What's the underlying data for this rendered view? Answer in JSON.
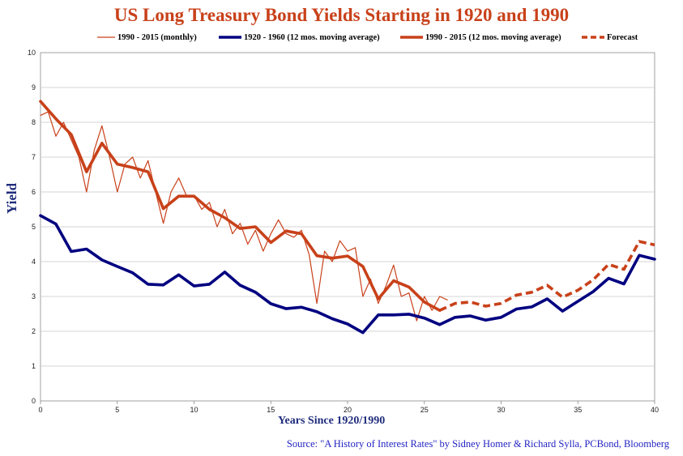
{
  "chart_data": {
    "type": "line",
    "title": "US Long Treasury Bond Yields Starting in 1920 and 1990",
    "xlabel": "Years Since 1920/1990",
    "ylabel": "Yield",
    "xlim": [
      0,
      40
    ],
    "ylim": [
      0,
      10
    ],
    "xticks": [
      "0",
      "5",
      "10",
      "15",
      "20",
      "25",
      "30",
      "35",
      "40"
    ],
    "yticks": [
      "0",
      "1",
      "2",
      "3",
      "4",
      "5",
      "6",
      "7",
      "8",
      "9",
      "10"
    ],
    "grid": true,
    "legend_position": "top",
    "series": [
      {
        "name": "1990 - 2015 (monthly)",
        "color": "#c8411a",
        "style": "thin",
        "x": [
          0,
          0.5,
          1,
          1.5,
          2,
          2.5,
          3,
          3.5,
          4,
          4.5,
          5,
          5.5,
          6,
          6.5,
          7,
          7.5,
          8,
          8.5,
          9,
          9.5,
          10,
          10.5,
          11,
          11.5,
          12,
          12.5,
          13,
          13.5,
          14,
          14.5,
          15,
          15.5,
          16,
          16.5,
          17,
          17.5,
          18,
          18.5,
          19,
          19.5,
          20,
          20.5,
          21,
          21.5,
          22,
          22.5,
          23,
          23.5,
          24,
          24.5,
          25,
          25.5,
          26,
          26.5
        ],
        "y": [
          8.2,
          8.3,
          7.6,
          8.0,
          7.5,
          7.0,
          6.0,
          7.2,
          7.9,
          7.0,
          6.0,
          6.8,
          7.0,
          6.4,
          6.9,
          6.0,
          5.1,
          6.0,
          6.4,
          5.9,
          5.9,
          5.5,
          5.7,
          5.0,
          5.5,
          4.8,
          5.1,
          4.5,
          4.9,
          4.3,
          4.8,
          5.2,
          4.8,
          4.7,
          4.9,
          4.2,
          2.8,
          4.3,
          4.0,
          4.6,
          4.3,
          4.4,
          3.0,
          3.5,
          2.8,
          3.3,
          3.9,
          3.0,
          3.1,
          2.3,
          3.0,
          2.6,
          3.0,
          2.9
        ]
      },
      {
        "name": "1920 - 1960 (12 mos. moving average)",
        "color": "#000080",
        "style": "thick",
        "x": [
          0,
          1,
          2,
          3,
          4,
          5,
          6,
          7,
          8,
          9,
          10,
          11,
          12,
          13,
          14,
          15,
          16,
          17,
          18,
          19,
          20,
          21,
          22,
          23,
          24,
          25,
          26,
          27,
          28,
          29,
          30,
          31,
          32,
          33,
          34,
          35,
          36,
          37,
          38,
          39,
          40
        ],
        "y": [
          5.32,
          5.08,
          4.29,
          4.36,
          4.05,
          3.86,
          3.68,
          3.35,
          3.33,
          3.62,
          3.3,
          3.35,
          3.7,
          3.32,
          3.12,
          2.79,
          2.65,
          2.69,
          2.56,
          2.36,
          2.21,
          1.96,
          2.47,
          2.47,
          2.49,
          2.38,
          2.19,
          2.4,
          2.44,
          2.32,
          2.4,
          2.64,
          2.7,
          2.93,
          2.58,
          2.86,
          3.14,
          3.52,
          3.36,
          4.18,
          4.07
        ]
      },
      {
        "name": "1990 - 2015 (12 mos. moving average)",
        "color": "#c8411a",
        "style": "thick",
        "x": [
          0,
          1,
          2,
          3,
          4,
          5,
          6,
          7,
          8,
          9,
          10,
          11,
          12,
          13,
          14,
          15,
          16,
          17,
          18,
          19,
          20,
          21,
          22,
          23,
          24,
          25,
          26
        ],
        "y": [
          8.6,
          8.1,
          7.65,
          6.58,
          7.4,
          6.8,
          6.7,
          6.58,
          5.52,
          5.88,
          5.88,
          5.5,
          5.26,
          4.95,
          5.0,
          4.55,
          4.88,
          4.8,
          4.17,
          4.1,
          4.16,
          3.86,
          2.93,
          3.45,
          3.27,
          2.84,
          2.6
        ]
      },
      {
        "name": "Forecast",
        "color": "#c8411a",
        "style": "dashed",
        "x": [
          26,
          27,
          28,
          29,
          30,
          31,
          32,
          33,
          34,
          35,
          36,
          37,
          38,
          39,
          40
        ],
        "y": [
          2.6,
          2.8,
          2.84,
          2.72,
          2.8,
          3.04,
          3.12,
          3.32,
          2.98,
          3.18,
          3.48,
          3.92,
          3.78,
          4.58,
          4.48
        ]
      }
    ]
  },
  "source": "Source: \"A History of Interest Rates\" by Sidney Homer & Richard Sylla, PCBond, Bloomberg"
}
